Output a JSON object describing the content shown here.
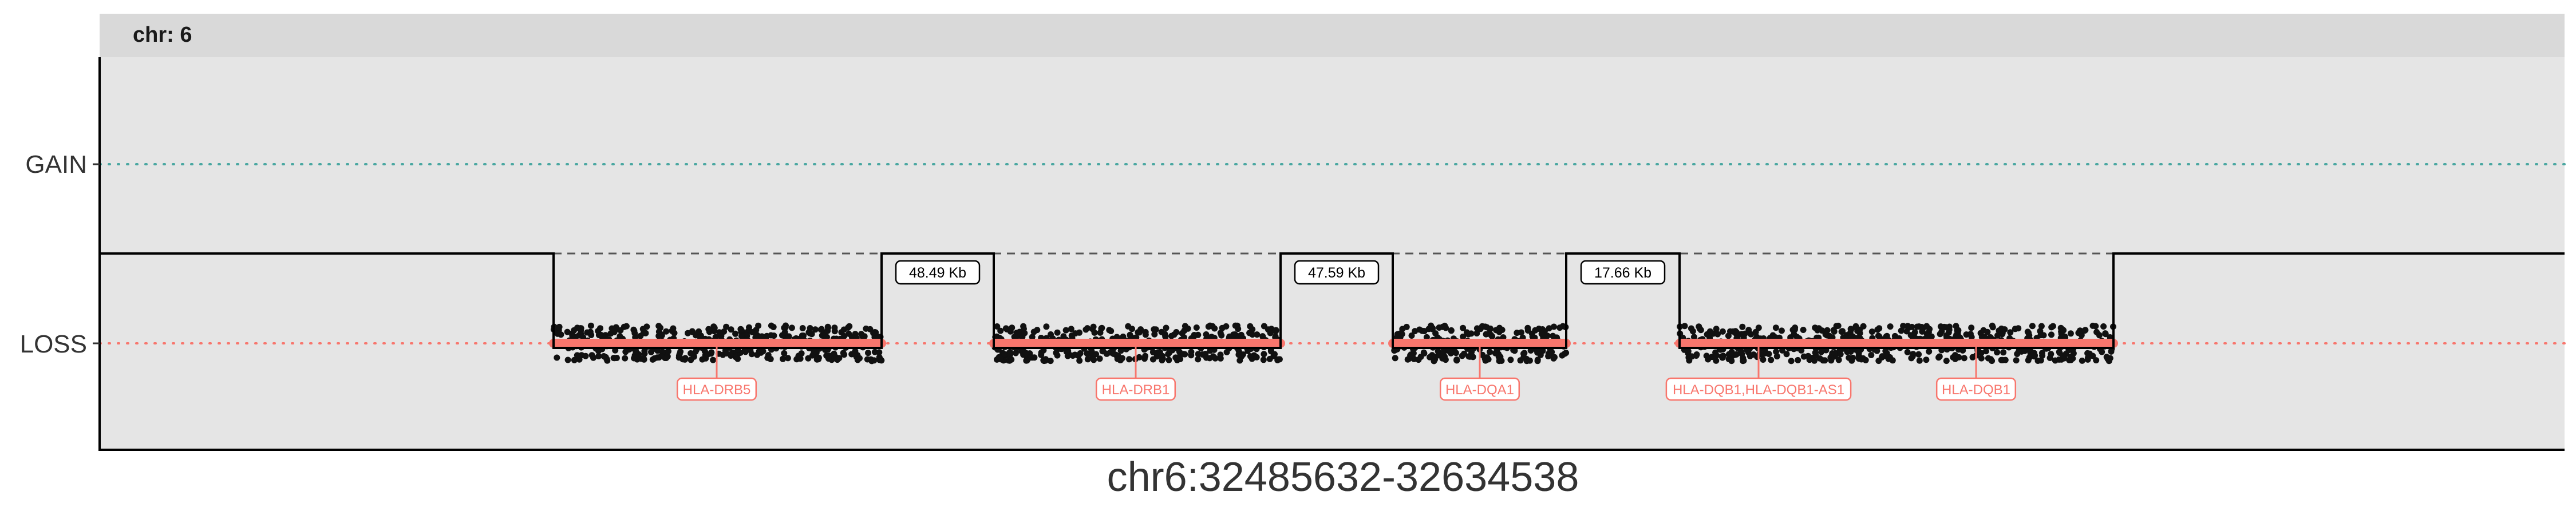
{
  "chart_data": {
    "type": "scatter",
    "facet_label": "chr: 6",
    "xlabel": "chr6:32485632-32634538",
    "ylabel": "",
    "y_categories": [
      "LOSS",
      "GAIN"
    ],
    "grid": false,
    "colors": {
      "panel_bg": "#e5e5e5",
      "strip_bg": "#d9d9d9",
      "gain_ref": "#4aa7a1",
      "loss_ref": "#f8766d",
      "points": "#111111",
      "segment": "#f8766d",
      "gene": "#f8766d",
      "step": "#000000",
      "gap_dash": "#555555"
    },
    "segments": [
      {
        "status": "LOSS",
        "point_count": 420
      },
      {
        "status": "LOSS",
        "point_count": 360
      },
      {
        "status": "LOSS",
        "point_count": 220
      },
      {
        "status": "LOSS",
        "point_count": 540
      }
    ],
    "gaps": [
      "48.49 Kb",
      "47.59 Kb",
      "17.66 Kb"
    ],
    "genes": [
      {
        "label": "HLA-DRB5",
        "segment": 0
      },
      {
        "label": "HLA-DRB1",
        "segment": 1
      },
      {
        "label": "HLA-DQA1",
        "segment": 2
      },
      {
        "label": "HLA-DQB1,HLA-DQB1-AS1",
        "segment": 3
      },
      {
        "label": "HLA-DQB1",
        "segment": 3
      }
    ]
  }
}
